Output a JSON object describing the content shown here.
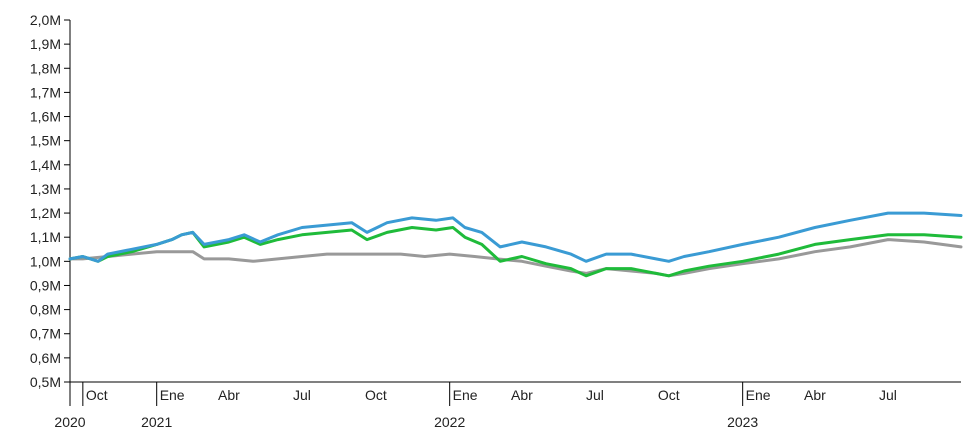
{
  "chart_data": {
    "type": "line",
    "title": "",
    "xlabel": "",
    "ylabel": "",
    "ylim": [
      0.5,
      2.0
    ],
    "xlim": [
      "2020-09-15",
      "2023-09-30"
    ],
    "y_ticks": [
      "0,5M",
      "0,6M",
      "0,7M",
      "0,8M",
      "0,9M",
      "1,0M",
      "1,1M",
      "1,2M",
      "1,3M",
      "1,4M",
      "1,5M",
      "1,6M",
      "1,7M",
      "1,8M",
      "1,9M",
      "2,0M"
    ],
    "x_ticks": [
      {
        "date": "2020-10-01",
        "label": "Oct",
        "major": true
      },
      {
        "date": "2021-01-01",
        "label": "Ene",
        "major": true
      },
      {
        "date": "2021-04-01",
        "label": "Abr",
        "major": false
      },
      {
        "date": "2021-07-01",
        "label": "Jul",
        "major": false
      },
      {
        "date": "2021-10-01",
        "label": "Oct",
        "major": false
      },
      {
        "date": "2022-01-01",
        "label": "Ene",
        "major": true
      },
      {
        "date": "2022-04-01",
        "label": "Abr",
        "major": false
      },
      {
        "date": "2022-07-01",
        "label": "Jul",
        "major": false
      },
      {
        "date": "2022-10-01",
        "label": "Oct",
        "major": false
      },
      {
        "date": "2023-01-01",
        "label": "Ene",
        "major": true
      },
      {
        "date": "2023-04-01",
        "label": "Abr",
        "major": false
      },
      {
        "date": "2023-07-01",
        "label": "Jul",
        "major": false
      }
    ],
    "year_labels": [
      {
        "date": "2020-09-15",
        "label": "2020"
      },
      {
        "date": "2021-01-01",
        "label": "2021"
      },
      {
        "date": "2022-01-01",
        "label": "2022"
      },
      {
        "date": "2023-01-01",
        "label": "2023"
      }
    ],
    "grid": false,
    "legend": "none",
    "series": [
      {
        "color": "#3a9bd4",
        "points": [
          [
            "2020-09-15",
            1.01
          ],
          [
            "2020-10-01",
            1.02
          ],
          [
            "2020-10-20",
            1.0
          ],
          [
            "2020-11-01",
            1.03
          ],
          [
            "2020-12-01",
            1.05
          ],
          [
            "2021-01-01",
            1.07
          ],
          [
            "2021-01-20",
            1.09
          ],
          [
            "2021-02-01",
            1.11
          ],
          [
            "2021-02-15",
            1.12
          ],
          [
            "2021-03-01",
            1.07
          ],
          [
            "2021-04-01",
            1.09
          ],
          [
            "2021-04-20",
            1.11
          ],
          [
            "2021-05-10",
            1.08
          ],
          [
            "2021-06-01",
            1.11
          ],
          [
            "2021-07-01",
            1.14
          ],
          [
            "2021-08-01",
            1.15
          ],
          [
            "2021-09-01",
            1.16
          ],
          [
            "2021-09-20",
            1.12
          ],
          [
            "2021-10-15",
            1.16
          ],
          [
            "2021-11-15",
            1.18
          ],
          [
            "2021-12-15",
            1.17
          ],
          [
            "2022-01-05",
            1.18
          ],
          [
            "2022-01-20",
            1.14
          ],
          [
            "2022-02-10",
            1.12
          ],
          [
            "2022-03-05",
            1.06
          ],
          [
            "2022-04-01",
            1.08
          ],
          [
            "2022-05-01",
            1.06
          ],
          [
            "2022-06-01",
            1.03
          ],
          [
            "2022-06-20",
            1.0
          ],
          [
            "2022-07-15",
            1.03
          ],
          [
            "2022-08-15",
            1.03
          ],
          [
            "2022-09-15",
            1.01
          ],
          [
            "2022-10-01",
            1.0
          ],
          [
            "2022-10-20",
            1.02
          ],
          [
            "2022-11-20",
            1.04
          ],
          [
            "2023-01-01",
            1.07
          ],
          [
            "2023-02-15",
            1.1
          ],
          [
            "2023-04-01",
            1.14
          ],
          [
            "2023-05-15",
            1.17
          ],
          [
            "2023-07-01",
            1.2
          ],
          [
            "2023-08-15",
            1.2
          ],
          [
            "2023-09-30",
            1.19
          ]
        ]
      },
      {
        "color": "#1fbb3a",
        "points": [
          [
            "2020-09-15",
            1.01
          ],
          [
            "2020-10-01",
            1.02
          ],
          [
            "2020-10-20",
            1.0
          ],
          [
            "2020-11-01",
            1.02
          ],
          [
            "2020-12-01",
            1.04
          ],
          [
            "2021-01-01",
            1.07
          ],
          [
            "2021-01-20",
            1.09
          ],
          [
            "2021-02-01",
            1.11
          ],
          [
            "2021-02-15",
            1.12
          ],
          [
            "2021-03-01",
            1.06
          ],
          [
            "2021-04-01",
            1.08
          ],
          [
            "2021-04-20",
            1.1
          ],
          [
            "2021-05-10",
            1.07
          ],
          [
            "2021-06-01",
            1.09
          ],
          [
            "2021-07-01",
            1.11
          ],
          [
            "2021-08-01",
            1.12
          ],
          [
            "2021-09-01",
            1.13
          ],
          [
            "2021-09-20",
            1.09
          ],
          [
            "2021-10-15",
            1.12
          ],
          [
            "2021-11-15",
            1.14
          ],
          [
            "2021-12-15",
            1.13
          ],
          [
            "2022-01-05",
            1.14
          ],
          [
            "2022-01-20",
            1.1
          ],
          [
            "2022-02-10",
            1.07
          ],
          [
            "2022-03-05",
            1.0
          ],
          [
            "2022-04-01",
            1.02
          ],
          [
            "2022-05-01",
            0.99
          ],
          [
            "2022-06-01",
            0.97
          ],
          [
            "2022-06-20",
            0.94
          ],
          [
            "2022-07-15",
            0.97
          ],
          [
            "2022-08-15",
            0.97
          ],
          [
            "2022-09-15",
            0.95
          ],
          [
            "2022-10-01",
            0.94
          ],
          [
            "2022-10-20",
            0.96
          ],
          [
            "2022-11-20",
            0.98
          ],
          [
            "2023-01-01",
            1.0
          ],
          [
            "2023-02-15",
            1.03
          ],
          [
            "2023-04-01",
            1.07
          ],
          [
            "2023-05-15",
            1.09
          ],
          [
            "2023-07-01",
            1.11
          ],
          [
            "2023-08-15",
            1.11
          ],
          [
            "2023-09-30",
            1.1
          ]
        ]
      },
      {
        "color": "#999999",
        "points": [
          [
            "2020-09-15",
            1.01
          ],
          [
            "2020-10-01",
            1.01
          ],
          [
            "2020-11-01",
            1.02
          ],
          [
            "2020-12-01",
            1.03
          ],
          [
            "2021-01-01",
            1.04
          ],
          [
            "2021-02-01",
            1.04
          ],
          [
            "2021-02-15",
            1.04
          ],
          [
            "2021-03-01",
            1.01
          ],
          [
            "2021-04-01",
            1.01
          ],
          [
            "2021-05-01",
            1.0
          ],
          [
            "2021-06-01",
            1.01
          ],
          [
            "2021-07-01",
            1.02
          ],
          [
            "2021-08-01",
            1.03
          ],
          [
            "2021-09-01",
            1.03
          ],
          [
            "2021-10-01",
            1.03
          ],
          [
            "2021-11-01",
            1.03
          ],
          [
            "2021-12-01",
            1.02
          ],
          [
            "2022-01-01",
            1.03
          ],
          [
            "2022-02-01",
            1.02
          ],
          [
            "2022-03-01",
            1.01
          ],
          [
            "2022-04-01",
            1.0
          ],
          [
            "2022-05-01",
            0.98
          ],
          [
            "2022-06-01",
            0.96
          ],
          [
            "2022-06-20",
            0.95
          ],
          [
            "2022-07-15",
            0.97
          ],
          [
            "2022-08-15",
            0.96
          ],
          [
            "2022-09-15",
            0.95
          ],
          [
            "2022-10-01",
            0.94
          ],
          [
            "2022-10-20",
            0.95
          ],
          [
            "2022-11-20",
            0.97
          ],
          [
            "2023-01-01",
            0.99
          ],
          [
            "2023-02-15",
            1.01
          ],
          [
            "2023-04-01",
            1.04
          ],
          [
            "2023-05-15",
            1.06
          ],
          [
            "2023-07-01",
            1.09
          ],
          [
            "2023-08-15",
            1.08
          ],
          [
            "2023-09-30",
            1.06
          ]
        ]
      }
    ]
  }
}
